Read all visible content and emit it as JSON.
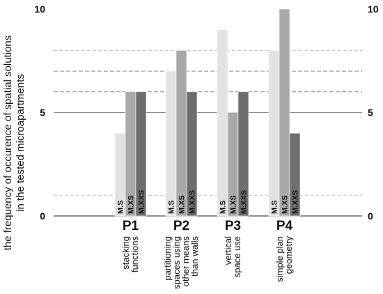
{
  "chart_data": {
    "type": "bar",
    "ylabel_lines": [
      "the frequency of occurence of spatial solutions",
      "in the tested microapartments"
    ],
    "ylim": [
      0,
      10
    ],
    "y_ticks": [
      {
        "value": 0,
        "label": "0"
      },
      {
        "value": 5,
        "label": "5"
      },
      {
        "value": 10,
        "label": "10"
      }
    ],
    "reference_lines": [
      {
        "value": 1,
        "style": "dashed-light"
      },
      {
        "value": 6,
        "style": "dashed-dark"
      },
      {
        "value": 7,
        "style": "dashed-dark"
      },
      {
        "value": 8,
        "style": "dashed-light"
      }
    ],
    "categories": [
      "P1",
      "P2",
      "P3",
      "P4"
    ],
    "category_descriptions": [
      [
        "stacking",
        "functions"
      ],
      [
        "partitioning",
        "spaces using",
        "other means",
        "than walls"
      ],
      [
        "vertical",
        "space use"
      ],
      [
        "simple plan",
        "geometry"
      ]
    ],
    "series": [
      {
        "name": "M.S",
        "color": "#e2e2e2",
        "values": [
          4,
          7,
          9,
          8
        ]
      },
      {
        "name": "M.XS",
        "color": "#a9a9a9",
        "values": [
          6,
          8,
          5,
          10
        ]
      },
      {
        "name": "M.XXS",
        "color": "#6e6e6e",
        "values": [
          6,
          6,
          6,
          4
        ]
      }
    ]
  }
}
